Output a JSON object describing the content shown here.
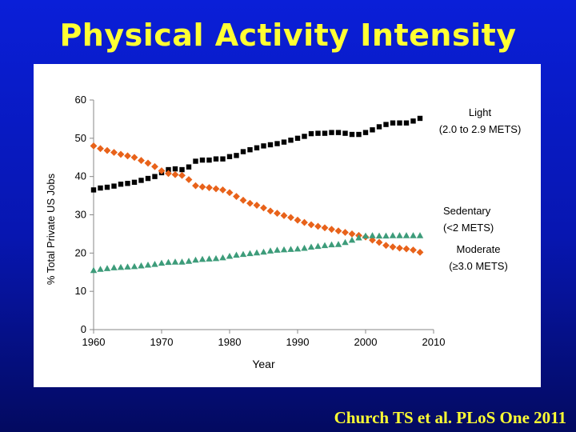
{
  "slide": {
    "title": "Physical Activity Intensity",
    "citation": "Church TS et al. PLoS One 2011"
  },
  "chart_data": {
    "type": "scatter",
    "xlabel": "Year",
    "ylabel": "% Total Private US Jobs",
    "xlim": [
      1960,
      2010
    ],
    "ylim": [
      0,
      60
    ],
    "xticks": [
      1960,
      1970,
      1980,
      1990,
      2000,
      2010
    ],
    "yticks": [
      0,
      10,
      20,
      30,
      40,
      50,
      60
    ],
    "grid": false,
    "series": [
      {
        "name": "Light",
        "label_lines": [
          "Light",
          "(2.0 to 2.9 METS)"
        ],
        "color": "#000000",
        "marker": "square",
        "x": [
          1960,
          1961,
          1962,
          1963,
          1964,
          1965,
          1966,
          1967,
          1968,
          1969,
          1970,
          1971,
          1972,
          1973,
          1974,
          1975,
          1976,
          1977,
          1978,
          1979,
          1980,
          1981,
          1982,
          1983,
          1984,
          1985,
          1986,
          1987,
          1988,
          1989,
          1990,
          1991,
          1992,
          1993,
          1994,
          1995,
          1996,
          1997,
          1998,
          1999,
          2000,
          2001,
          2002,
          2003,
          2004,
          2005,
          2006,
          2007,
          2008
        ],
        "y": [
          36.5,
          37,
          37.2,
          37.5,
          38,
          38.2,
          38.5,
          39,
          39.5,
          40,
          41,
          41.8,
          42,
          41.8,
          42.5,
          44,
          44.3,
          44.3,
          44.6,
          44.6,
          45.2,
          45.5,
          46.5,
          47,
          47.5,
          48,
          48.3,
          48.6,
          49,
          49.5,
          50,
          50.5,
          51.2,
          51.3,
          51.3,
          51.5,
          51.5,
          51.3,
          51,
          51,
          51.5,
          52.2,
          53,
          53.6,
          54,
          54,
          54,
          54.5,
          55.2
        ]
      },
      {
        "name": "Sedentary",
        "label_lines": [
          "Sedentary",
          "(<2 METS)"
        ],
        "color": "#e8621a",
        "marker": "diamond",
        "x": [
          1960,
          1961,
          1962,
          1963,
          1964,
          1965,
          1966,
          1967,
          1968,
          1969,
          1970,
          1971,
          1972,
          1973,
          1974,
          1975,
          1976,
          1977,
          1978,
          1979,
          1980,
          1981,
          1982,
          1983,
          1984,
          1985,
          1986,
          1987,
          1988,
          1989,
          1990,
          1991,
          1992,
          1993,
          1994,
          1995,
          1996,
          1997,
          1998,
          1999,
          2000,
          2001,
          2002,
          2003,
          2004,
          2005,
          2006,
          2007,
          2008
        ],
        "y": [
          48,
          47.3,
          46.8,
          46.3,
          45.8,
          45.4,
          45,
          44.2,
          43.5,
          42.6,
          41.5,
          40.8,
          40.5,
          40.3,
          39.2,
          37.6,
          37.3,
          37.1,
          36.8,
          36.5,
          35.8,
          34.8,
          33.8,
          33,
          32.5,
          31.8,
          31,
          30.4,
          29.8,
          29.3,
          28.6,
          28,
          27.4,
          27,
          26.6,
          26.2,
          25.8,
          25.4,
          25,
          24.6,
          24.2,
          23.4,
          22.8,
          22,
          21.6,
          21.3,
          21.1,
          20.8,
          20.2
        ]
      },
      {
        "name": "Moderate",
        "label_lines": [
          "Moderate",
          "(≥3.0 METS)"
        ],
        "color": "#3d9c7a",
        "marker": "triangle",
        "x": [
          1960,
          1961,
          1962,
          1963,
          1964,
          1965,
          1966,
          1967,
          1968,
          1969,
          1970,
          1971,
          1972,
          1973,
          1974,
          1975,
          1976,
          1977,
          1978,
          1979,
          1980,
          1981,
          1982,
          1983,
          1984,
          1985,
          1986,
          1987,
          1988,
          1989,
          1990,
          1991,
          1992,
          1993,
          1994,
          1995,
          1996,
          1997,
          1998,
          1999,
          2000,
          2001,
          2002,
          2003,
          2004,
          2005,
          2006,
          2007,
          2008
        ],
        "y": [
          15.5,
          15.8,
          16,
          16.2,
          16.3,
          16.4,
          16.5,
          16.7,
          16.9,
          17.1,
          17.4,
          17.6,
          17.7,
          17.7,
          17.9,
          18.2,
          18.4,
          18.5,
          18.6,
          18.8,
          19.2,
          19.5,
          19.7,
          19.9,
          20.1,
          20.3,
          20.6,
          20.8,
          20.9,
          21,
          21.1,
          21.3,
          21.6,
          21.8,
          22,
          22.2,
          22.3,
          22.8,
          23.4,
          24,
          24.5,
          24.6,
          24.5,
          24.5,
          24.6,
          24.6,
          24.6,
          24.6,
          24.6
        ]
      }
    ]
  }
}
